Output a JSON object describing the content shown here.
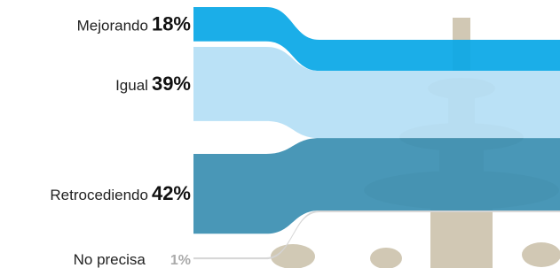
{
  "chart_data": {
    "type": "sankey",
    "series": [
      {
        "name": "Mejorando",
        "values": [
          18
        ],
        "value_labels": [
          "18%"
        ],
        "color": "#0aa8e6"
      },
      {
        "name": "Igual",
        "values": [
          39
        ],
        "value_labels": [
          "39%"
        ],
        "color": "#b5dff5"
      },
      {
        "name": "Retrocediendo",
        "values": [
          42
        ],
        "value_labels": [
          "42%"
        ],
        "color": "#3b8fb2"
      },
      {
        "name": "No precisa",
        "values": [
          1
        ],
        "value_labels": [
          "1%"
        ],
        "color": "#d4d4d4"
      }
    ]
  }
}
